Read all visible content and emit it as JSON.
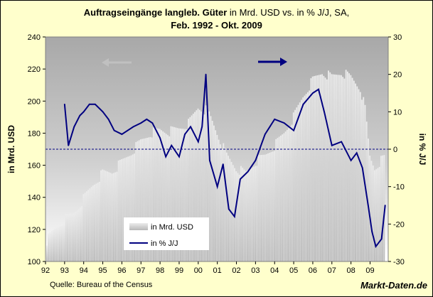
{
  "chart_data": {
    "type": "bar+line",
    "title_bold": "Auftragseingänge langleb. Güter",
    "title_rest": " in Mrd. USD vs. in % J/J, SA,",
    "subtitle": "Feb. 1992 - Okt. 2009",
    "ylabel_left": "in Mrd. USD",
    "ylabel_right": "in % J/J",
    "ylim_left": [
      100,
      240
    ],
    "ylim_right": [
      -30,
      30
    ],
    "yticks_left": [
      "100",
      "120",
      "140",
      "160",
      "180",
      "200",
      "220",
      "240"
    ],
    "yticks_right": [
      "-30",
      "-20",
      "-10",
      "0",
      "10",
      "20",
      "30"
    ],
    "xticks": [
      "92",
      "93",
      "94",
      "95",
      "96",
      "97",
      "98",
      "99",
      "00",
      "01",
      "02",
      "03",
      "04",
      "05",
      "06",
      "07",
      "08",
      "09"
    ],
    "grid": false,
    "reference_line": 0,
    "legend": {
      "placement": "bottom-center",
      "entries": [
        {
          "label": "in Mrd. USD",
          "kind": "bar"
        },
        {
          "label": "in % J/J",
          "kind": "line"
        }
      ]
    },
    "bar_series": {
      "name": "in Mrd. USD",
      "color": "#c8c8c8",
      "x": [
        1992.08,
        1992.5,
        1993,
        1993.5,
        1994,
        1994.5,
        1995,
        1995.5,
        1996,
        1996.5,
        1997,
        1997.5,
        1998,
        1998.5,
        1999,
        1999.5,
        2000,
        2000.5,
        2001,
        2001.5,
        2002,
        2002.5,
        2003,
        2003.5,
        2004,
        2004.5,
        2005,
        2005.5,
        2006,
        2006.5,
        2007,
        2007.5,
        2008,
        2008.5,
        2008.75,
        2009,
        2009.25,
        2009.5,
        2009.79
      ],
      "values": [
        113,
        120,
        126,
        130,
        139,
        148,
        155,
        156,
        162,
        168,
        175,
        180,
        182,
        181,
        183,
        186,
        196,
        194,
        180,
        166,
        158,
        155,
        162,
        166,
        172,
        180,
        190,
        203,
        213,
        218,
        215,
        218,
        215,
        208,
        195,
        165,
        158,
        162,
        165
      ]
    },
    "line_series": {
      "name": "in % J/J",
      "color": "#000080",
      "x": [
        1993,
        1993.2,
        1993.5,
        1993.8,
        1994,
        1994.3,
        1994.6,
        1995,
        1995.3,
        1995.6,
        1996,
        1996.3,
        1996.6,
        1997,
        1997.3,
        1997.6,
        1998,
        1998.3,
        1998.6,
        1999,
        1999.3,
        1999.6,
        2000,
        2000.2,
        2000.4,
        2000.6,
        2001,
        2001.3,
        2001.6,
        2001.9,
        2002.2,
        2002.6,
        2003,
        2003.5,
        2004,
        2004.5,
        2005,
        2005.5,
        2006,
        2006.3,
        2006.6,
        2007,
        2007.5,
        2008,
        2008.3,
        2008.6,
        2008.9,
        2009.1,
        2009.3,
        2009.6,
        2009.79
      ],
      "values": [
        12,
        1,
        6,
        9,
        10,
        12,
        12,
        10,
        8,
        5,
        4,
        5,
        6,
        7,
        8,
        7,
        3,
        -2,
        1,
        -2,
        4,
        6,
        2,
        6,
        20,
        -3,
        -10,
        -4,
        -16,
        -18,
        -8,
        -6,
        -3,
        4,
        8,
        7,
        5,
        12,
        15,
        16,
        10,
        1,
        2,
        -3,
        -1,
        -5,
        -15,
        -22,
        -26,
        -24,
        -15
      ]
    },
    "annotations": {
      "arrow_left_color": "#c0c0c0",
      "arrow_right_color": "#000080"
    }
  },
  "source": "Quelle: Bureau of the Census",
  "brand": "Markt-Daten.de"
}
